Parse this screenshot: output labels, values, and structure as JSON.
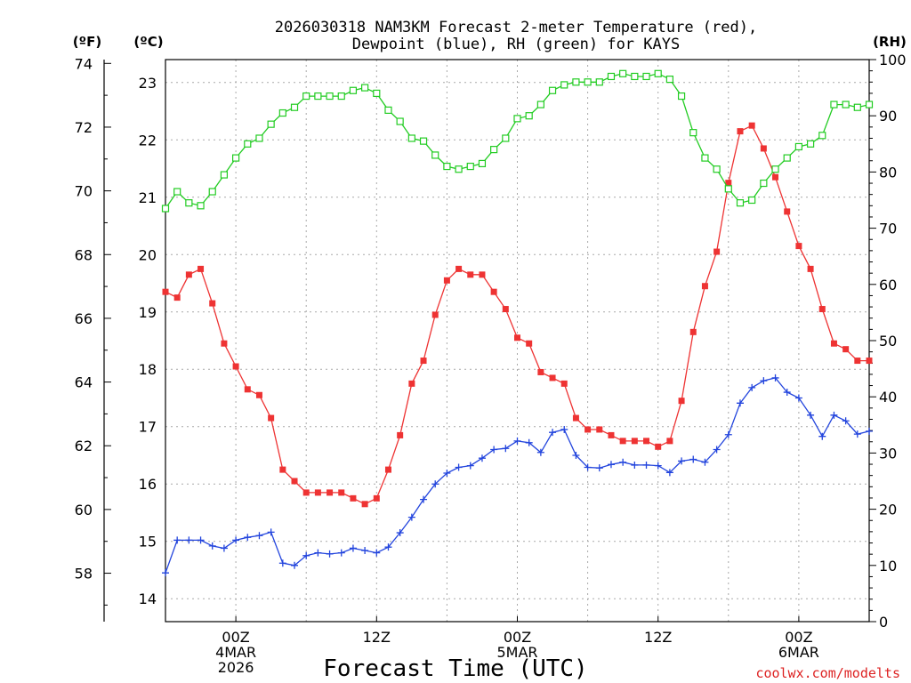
{
  "chart_data": {
    "type": "line",
    "title_line1": "2026030318 NAM3KM Forecast 2-meter Temperature (red),",
    "title_line2": "Dewpoint (blue), RH (green) for KAYS",
    "xlabel": "Forecast Time (UTC)",
    "credit": "coolwx.com/modelts",
    "units": {
      "fahrenheit": "(ºF)",
      "celsius": "(ºC)",
      "rh": "(RH)"
    },
    "x_hours_range": [
      -6,
      54
    ],
    "celsius_range": [
      13.6,
      23.4
    ],
    "rh_range": [
      0,
      100
    ],
    "x_ticks": [
      {
        "hour": 0,
        "line1": "00Z",
        "line2": "4MAR",
        "line3": "2026"
      },
      {
        "hour": 12,
        "line1": "12Z",
        "line2": "",
        "line3": ""
      },
      {
        "hour": 24,
        "line1": "00Z",
        "line2": "5MAR",
        "line3": ""
      },
      {
        "hour": 36,
        "line1": "12Z",
        "line2": "",
        "line3": ""
      },
      {
        "hour": 48,
        "line1": "00Z",
        "line2": "6MAR",
        "line3": ""
      }
    ],
    "celsius_ticks": [
      14,
      15,
      16,
      17,
      18,
      19,
      20,
      21,
      22,
      23
    ],
    "fahrenheit_ticks": [
      58,
      60,
      62,
      64,
      66,
      68,
      70,
      72,
      74
    ],
    "rh_ticks": [
      0,
      10,
      20,
      30,
      40,
      50,
      60,
      70,
      80,
      90,
      100
    ],
    "hours": [
      -6,
      -5,
      -4,
      -3,
      -2,
      -1,
      0,
      1,
      2,
      3,
      4,
      5,
      6,
      7,
      8,
      9,
      10,
      11,
      12,
      13,
      14,
      15,
      16,
      17,
      18,
      19,
      20,
      21,
      22,
      23,
      24,
      25,
      26,
      27,
      28,
      29,
      30,
      31,
      32,
      33,
      34,
      35,
      36,
      37,
      38,
      39,
      40,
      41,
      42,
      43,
      44,
      45,
      46,
      47,
      48,
      49,
      50,
      51,
      52,
      53,
      54
    ],
    "series": [
      {
        "name": "Temperature",
        "unit": "C",
        "color": "#ee3333",
        "marker": "filled-square",
        "values": [
          19.35,
          19.25,
          19.65,
          19.75,
          19.15,
          18.45,
          18.05,
          17.65,
          17.55,
          17.15,
          16.25,
          16.05,
          15.85,
          15.85,
          15.85,
          15.85,
          15.75,
          15.65,
          15.75,
          16.25,
          16.85,
          17.75,
          18.15,
          18.95,
          19.55,
          19.75,
          19.65,
          19.65,
          19.35,
          19.05,
          18.55,
          18.45,
          17.95,
          17.85,
          17.75,
          17.15,
          16.95,
          16.95,
          16.85,
          16.75,
          16.75,
          16.75,
          16.65,
          16.75,
          17.45,
          18.65,
          19.45,
          20.05,
          21.25,
          22.15,
          22.25,
          21.85,
          21.35,
          20.75,
          20.15,
          19.75,
          19.05,
          18.45,
          18.35,
          18.15,
          18.15
        ]
      },
      {
        "name": "Dewpoint",
        "unit": "C",
        "color": "#2244dd",
        "marker": "plus",
        "values": [
          14.45,
          15.02,
          15.02,
          15.02,
          14.92,
          14.88,
          15.02,
          15.07,
          15.1,
          15.16,
          14.62,
          14.58,
          14.75,
          14.8,
          14.78,
          14.8,
          14.88,
          14.84,
          14.8,
          14.9,
          15.15,
          15.42,
          15.73,
          16.0,
          16.19,
          16.29,
          16.32,
          16.45,
          16.6,
          16.62,
          16.75,
          16.72,
          16.55,
          16.9,
          16.95,
          16.5,
          16.29,
          16.28,
          16.34,
          16.38,
          16.33,
          16.33,
          16.32,
          16.2,
          16.4,
          16.43,
          16.38,
          16.6,
          16.86,
          17.41,
          17.68,
          17.8,
          17.85,
          17.6,
          17.5,
          17.2,
          16.83,
          17.2,
          17.1,
          16.87,
          16.92
        ]
      },
      {
        "name": "Relative Humidity",
        "unit": "%",
        "color": "#22cc22",
        "marker": "open-square",
        "values": [
          73.5,
          76.5,
          74.5,
          74.0,
          76.5,
          79.5,
          82.5,
          85.0,
          86.0,
          88.5,
          90.5,
          91.5,
          93.5,
          93.5,
          93.5,
          93.5,
          94.5,
          95.0,
          94.0,
          91.0,
          89.0,
          86.0,
          85.5,
          83.0,
          81.0,
          80.5,
          81.0,
          81.5,
          84.0,
          86.0,
          89.5,
          90.0,
          92.0,
          94.5,
          95.5,
          96.0,
          96.0,
          96.0,
          97.0,
          97.5,
          97.0,
          97.0,
          97.5,
          96.5,
          93.5,
          87.0,
          82.5,
          80.5,
          77.0,
          74.5,
          75.0,
          78.0,
          80.5,
          82.5,
          84.5,
          85.0,
          86.5,
          92.0,
          92.0,
          91.5,
          92.0
        ]
      }
    ]
  }
}
